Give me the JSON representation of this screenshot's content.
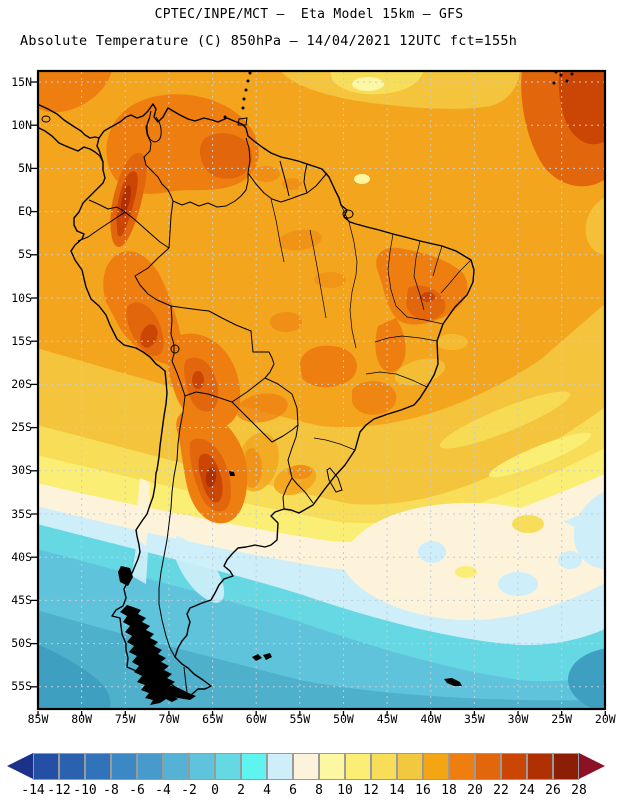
{
  "header": {
    "title_line1": "CPTEC/INPE/MCT —  Eta Model 15km — GFS",
    "title_line2": "Absolute Temperature (C) 850hPa — 14/04/2021 12UTC fct=155h"
  },
  "map": {
    "region_label": "South America",
    "palette": {
      "orange_base": "#F3A51D",
      "orange_1": "#EE7E10",
      "orange_2": "#E2660C",
      "red_1": "#CB4505",
      "red_2": "#B02F03",
      "dark_red": "#8D1E06",
      "gold": "#F3C43C",
      "yellow": "#F8DE58",
      "pale_yellow": "#FBEE75",
      "light_yellow": "#FCF7A3",
      "cream": "#FDF3DB",
      "pale_cyan": "#CEEFF9",
      "cyan_bright": "#5FF4F0",
      "cyan_1": "#66D8E3",
      "cyan_2": "#5FC4DB",
      "cyan_3": "#4FB0CC",
      "teal_dark": "#3F9FC0",
      "grid": "#C2CDD8"
    }
  },
  "axes": {
    "lat_labels": [
      "15N",
      "10N",
      "5N",
      "EQ",
      "5S",
      "10S",
      "15S",
      "20S",
      "25S",
      "30S",
      "35S",
      "40S",
      "45S",
      "50S",
      "55S"
    ],
    "lon_labels": [
      "85W",
      "80W",
      "75W",
      "70W",
      "65W",
      "60W",
      "55W",
      "50W",
      "45W",
      "40W",
      "35W",
      "30W",
      "25W",
      "20W"
    ]
  },
  "legend": {
    "unit": "C",
    "values": [
      -14,
      -12,
      -10,
      -8,
      -6,
      -4,
      -2,
      0,
      2,
      4,
      6,
      8,
      10,
      12,
      14,
      16,
      18,
      20,
      22,
      24,
      26,
      28
    ],
    "cell_colors": [
      "#2350A5",
      "#2A62B0",
      "#3173BB",
      "#3C88C4",
      "#479BCC",
      "#55B2D4",
      "#5FC4DB",
      "#66D8E3",
      "#5FF4F0",
      "#CEEFF9",
      "#FDF3DB",
      "#FCF7A3",
      "#FBEE75",
      "#F8DE58",
      "#F2C83E",
      "#F4A513",
      "#EE7E10",
      "#E2660C",
      "#CB4505",
      "#B02F03",
      "#8D1E06"
    ],
    "left_arrow_color": "#1B3288",
    "right_arrow_color": "#8C1127"
  }
}
